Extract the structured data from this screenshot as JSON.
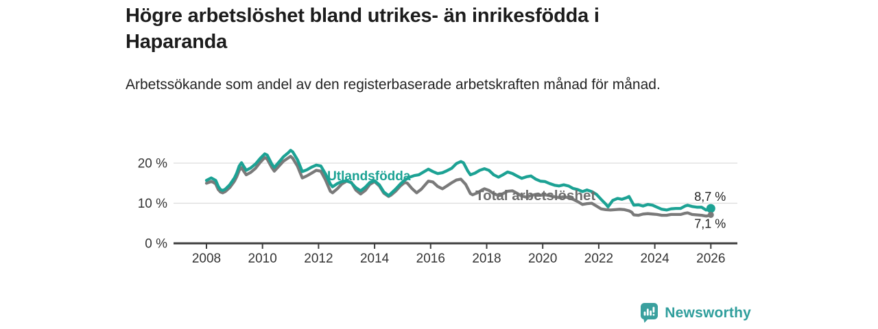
{
  "header": {
    "title": "Högre arbetslöshet bland utrikes- än inrikesfödda i Haparanda",
    "subtitle": "Arbetssökande som andel av den registerbaserade arbetskraften månad för månad."
  },
  "footer": {
    "brand": "Newsworthy",
    "icon": "bar-chart-bubble-icon"
  },
  "colors": {
    "accent_teal": "#1CA294",
    "series_gray": "#7a7a7a",
    "series_gray_label": "#6e6e6e",
    "gridline": "#dcdcdc",
    "axis": "#3d3d3d",
    "tick_text": "#333333",
    "value_text": "#1d1d1d",
    "brand_teal": "#2f9e9c"
  },
  "chart_data": {
    "type": "line",
    "title": "Högre arbetslöshet bland utrikes- än inrikesfödda i Haparanda",
    "subtitle": "Arbetssökande som andel av den registerbaserade arbetskraften månad för månad.",
    "unit": "%",
    "x_axis": {
      "ticks": [
        "2008",
        "2010",
        "2012",
        "2014",
        "2016",
        "2018",
        "2020",
        "2022",
        "2024",
        "2026"
      ],
      "range": [
        2006.8,
        2027.0
      ]
    },
    "y_axis": {
      "ticks": [
        {
          "value": 0,
          "label": "0 %"
        },
        {
          "value": 10,
          "label": "10 %"
        },
        {
          "value": 20,
          "label": "20 %"
        }
      ],
      "range": [
        0,
        24
      ],
      "grid": true
    },
    "legend_position": "inline-labels",
    "series": [
      {
        "name": "Utlandsfödda",
        "color": "#1CA294",
        "end_label": "8,7 %",
        "end_value": 8.7,
        "label_pos": [
          2012.31,
          15.7
        ],
        "points": [
          [
            2008.0,
            15.7
          ],
          [
            2008.17,
            16.3
          ],
          [
            2008.25,
            16.0
          ],
          [
            2008.33,
            15.7
          ],
          [
            2008.42,
            14.2
          ],
          [
            2008.5,
            13.4
          ],
          [
            2008.58,
            13.2
          ],
          [
            2008.67,
            13.5
          ],
          [
            2008.83,
            14.6
          ],
          [
            2009.0,
            16.3
          ],
          [
            2009.08,
            17.5
          ],
          [
            2009.17,
            19.3
          ],
          [
            2009.25,
            20.1
          ],
          [
            2009.33,
            19.2
          ],
          [
            2009.42,
            18.2
          ],
          [
            2009.58,
            18.8
          ],
          [
            2009.75,
            19.8
          ],
          [
            2009.92,
            21.2
          ],
          [
            2010.08,
            22.3
          ],
          [
            2010.17,
            22.0
          ],
          [
            2010.33,
            19.8
          ],
          [
            2010.42,
            18.9
          ],
          [
            2010.58,
            20.2
          ],
          [
            2010.75,
            21.6
          ],
          [
            2010.92,
            22.6
          ],
          [
            2011.0,
            23.2
          ],
          [
            2011.08,
            22.8
          ],
          [
            2011.25,
            20.8
          ],
          [
            2011.42,
            17.9
          ],
          [
            2011.58,
            18.3
          ],
          [
            2011.75,
            19.0
          ],
          [
            2011.92,
            19.5
          ],
          [
            2012.08,
            19.3
          ],
          [
            2012.25,
            17.3
          ],
          [
            2012.42,
            14.8
          ],
          [
            2012.5,
            14.1
          ],
          [
            2012.67,
            14.9
          ],
          [
            2012.83,
            15.4
          ],
          [
            2013.0,
            15.6
          ],
          [
            2013.17,
            15.1
          ],
          [
            2013.33,
            13.9
          ],
          [
            2013.5,
            13.1
          ],
          [
            2013.67,
            14.0
          ],
          [
            2013.83,
            15.2
          ],
          [
            2014.0,
            15.6
          ],
          [
            2014.17,
            14.6
          ],
          [
            2014.33,
            12.8
          ],
          [
            2014.5,
            11.9
          ],
          [
            2014.58,
            12.4
          ],
          [
            2014.75,
            13.5
          ],
          [
            2014.92,
            14.8
          ],
          [
            2015.08,
            15.8
          ],
          [
            2015.25,
            16.5
          ],
          [
            2015.42,
            16.9
          ],
          [
            2015.58,
            17.1
          ],
          [
            2015.75,
            17.8
          ],
          [
            2015.92,
            18.5
          ],
          [
            2016.08,
            17.9
          ],
          [
            2016.25,
            17.4
          ],
          [
            2016.42,
            17.6
          ],
          [
            2016.58,
            18.1
          ],
          [
            2016.75,
            18.7
          ],
          [
            2016.92,
            19.9
          ],
          [
            2017.08,
            20.4
          ],
          [
            2017.17,
            20.1
          ],
          [
            2017.33,
            18.0
          ],
          [
            2017.42,
            17.1
          ],
          [
            2017.58,
            17.5
          ],
          [
            2017.75,
            18.2
          ],
          [
            2017.92,
            18.6
          ],
          [
            2018.08,
            18.2
          ],
          [
            2018.25,
            17.1
          ],
          [
            2018.42,
            16.5
          ],
          [
            2018.58,
            17.1
          ],
          [
            2018.75,
            17.8
          ],
          [
            2018.92,
            17.4
          ],
          [
            2019.08,
            16.8
          ],
          [
            2019.25,
            16.2
          ],
          [
            2019.42,
            16.6
          ],
          [
            2019.58,
            16.8
          ],
          [
            2019.75,
            16.0
          ],
          [
            2019.92,
            15.5
          ],
          [
            2020.08,
            15.4
          ],
          [
            2020.25,
            14.9
          ],
          [
            2020.42,
            14.5
          ],
          [
            2020.58,
            14.3
          ],
          [
            2020.75,
            14.6
          ],
          [
            2020.92,
            14.3
          ],
          [
            2021.08,
            13.7
          ],
          [
            2021.25,
            13.4
          ],
          [
            2021.42,
            12.9
          ],
          [
            2021.58,
            13.3
          ],
          [
            2021.75,
            12.9
          ],
          [
            2021.92,
            12.2
          ],
          [
            2022.08,
            11.0
          ],
          [
            2022.25,
            9.8
          ],
          [
            2022.33,
            9.1
          ],
          [
            2022.5,
            10.7
          ],
          [
            2022.67,
            11.2
          ],
          [
            2022.83,
            11.0
          ],
          [
            2023.0,
            11.4
          ],
          [
            2023.08,
            11.7
          ],
          [
            2023.25,
            9.5
          ],
          [
            2023.42,
            9.6
          ],
          [
            2023.58,
            9.3
          ],
          [
            2023.75,
            9.7
          ],
          [
            2023.92,
            9.5
          ],
          [
            2024.08,
            9.0
          ],
          [
            2024.25,
            8.5
          ],
          [
            2024.42,
            8.3
          ],
          [
            2024.58,
            8.6
          ],
          [
            2024.75,
            8.7
          ],
          [
            2024.92,
            8.7
          ],
          [
            2025.08,
            9.3
          ],
          [
            2025.17,
            9.5
          ],
          [
            2025.33,
            9.2
          ],
          [
            2025.5,
            9.0
          ],
          [
            2025.67,
            9.0
          ],
          [
            2025.83,
            8.3
          ],
          [
            2025.92,
            8.4
          ],
          [
            2026.0,
            8.7
          ]
        ]
      },
      {
        "name": "Total arbetslöshet",
        "color": "#7a7a7a",
        "end_label": "7,1 %",
        "end_value": 7.1,
        "label_pos": [
          2017.6,
          10.8
        ],
        "points": [
          [
            2008.0,
            15.0
          ],
          [
            2008.17,
            15.4
          ],
          [
            2008.25,
            15.2
          ],
          [
            2008.33,
            14.8
          ],
          [
            2008.42,
            13.4
          ],
          [
            2008.5,
            12.8
          ],
          [
            2008.58,
            12.6
          ],
          [
            2008.67,
            12.9
          ],
          [
            2008.83,
            13.9
          ],
          [
            2009.0,
            15.5
          ],
          [
            2009.08,
            16.6
          ],
          [
            2009.17,
            18.2
          ],
          [
            2009.25,
            18.9
          ],
          [
            2009.33,
            18.0
          ],
          [
            2009.42,
            17.1
          ],
          [
            2009.58,
            17.7
          ],
          [
            2009.75,
            18.7
          ],
          [
            2009.92,
            20.2
          ],
          [
            2010.08,
            21.4
          ],
          [
            2010.17,
            21.0
          ],
          [
            2010.33,
            18.9
          ],
          [
            2010.42,
            18.0
          ],
          [
            2010.58,
            19.2
          ],
          [
            2010.75,
            20.5
          ],
          [
            2010.92,
            21.3
          ],
          [
            2011.0,
            21.7
          ],
          [
            2011.08,
            21.2
          ],
          [
            2011.25,
            19.2
          ],
          [
            2011.42,
            16.3
          ],
          [
            2011.58,
            16.8
          ],
          [
            2011.75,
            17.5
          ],
          [
            2011.92,
            18.2
          ],
          [
            2012.08,
            18.0
          ],
          [
            2012.25,
            15.8
          ],
          [
            2012.42,
            13.0
          ],
          [
            2012.5,
            12.6
          ],
          [
            2012.67,
            13.6
          ],
          [
            2012.83,
            14.8
          ],
          [
            2013.0,
            15.5
          ],
          [
            2013.17,
            15.2
          ],
          [
            2013.33,
            13.3
          ],
          [
            2013.5,
            12.3
          ],
          [
            2013.67,
            13.2
          ],
          [
            2013.83,
            14.7
          ],
          [
            2014.0,
            15.4
          ],
          [
            2014.17,
            14.3
          ],
          [
            2014.33,
            12.5
          ],
          [
            2014.5,
            11.7
          ],
          [
            2014.58,
            12.0
          ],
          [
            2014.75,
            13.0
          ],
          [
            2014.92,
            14.3
          ],
          [
            2015.08,
            15.2
          ],
          [
            2015.17,
            15.0
          ],
          [
            2015.33,
            13.7
          ],
          [
            2015.5,
            12.6
          ],
          [
            2015.67,
            13.5
          ],
          [
            2015.83,
            14.8
          ],
          [
            2015.92,
            15.5
          ],
          [
            2016.08,
            15.3
          ],
          [
            2016.25,
            14.2
          ],
          [
            2016.42,
            13.6
          ],
          [
            2016.58,
            14.3
          ],
          [
            2016.75,
            15.1
          ],
          [
            2016.92,
            15.8
          ],
          [
            2017.08,
            16.0
          ],
          [
            2017.25,
            14.7
          ],
          [
            2017.42,
            12.4
          ],
          [
            2017.5,
            12.1
          ],
          [
            2017.67,
            12.6
          ],
          [
            2017.83,
            13.3
          ],
          [
            2017.92,
            13.6
          ],
          [
            2018.08,
            13.2
          ],
          [
            2018.25,
            12.4
          ],
          [
            2018.42,
            11.9
          ],
          [
            2018.58,
            12.4
          ],
          [
            2018.75,
            13.0
          ],
          [
            2018.92,
            13.1
          ],
          [
            2019.08,
            12.5
          ],
          [
            2019.25,
            11.8
          ],
          [
            2019.42,
            11.5
          ],
          [
            2019.58,
            11.9
          ],
          [
            2019.75,
            12.2
          ],
          [
            2019.92,
            12.0
          ],
          [
            2020.08,
            12.1
          ],
          [
            2020.25,
            11.9
          ],
          [
            2020.42,
            11.6
          ],
          [
            2020.58,
            11.4
          ],
          [
            2020.75,
            11.6
          ],
          [
            2020.92,
            11.4
          ],
          [
            2021.08,
            11.0
          ],
          [
            2021.25,
            10.4
          ],
          [
            2021.42,
            9.7
          ],
          [
            2021.58,
            9.9
          ],
          [
            2021.75,
            10.0
          ],
          [
            2021.92,
            9.3
          ],
          [
            2022.08,
            8.6
          ],
          [
            2022.25,
            8.4
          ],
          [
            2022.42,
            8.3
          ],
          [
            2022.58,
            8.4
          ],
          [
            2022.75,
            8.5
          ],
          [
            2022.92,
            8.4
          ],
          [
            2023.08,
            8.1
          ],
          [
            2023.17,
            7.8
          ],
          [
            2023.25,
            7.1
          ],
          [
            2023.42,
            7.0
          ],
          [
            2023.58,
            7.3
          ],
          [
            2023.75,
            7.4
          ],
          [
            2023.92,
            7.3
          ],
          [
            2024.08,
            7.2
          ],
          [
            2024.25,
            7.0
          ],
          [
            2024.42,
            7.0
          ],
          [
            2024.58,
            7.2
          ],
          [
            2024.75,
            7.2
          ],
          [
            2024.92,
            7.2
          ],
          [
            2025.08,
            7.5
          ],
          [
            2025.17,
            7.6
          ],
          [
            2025.33,
            7.2
          ],
          [
            2025.5,
            7.1
          ],
          [
            2025.67,
            7.0
          ],
          [
            2025.83,
            6.8
          ],
          [
            2025.92,
            6.9
          ],
          [
            2026.0,
            7.1
          ]
        ]
      }
    ]
  }
}
